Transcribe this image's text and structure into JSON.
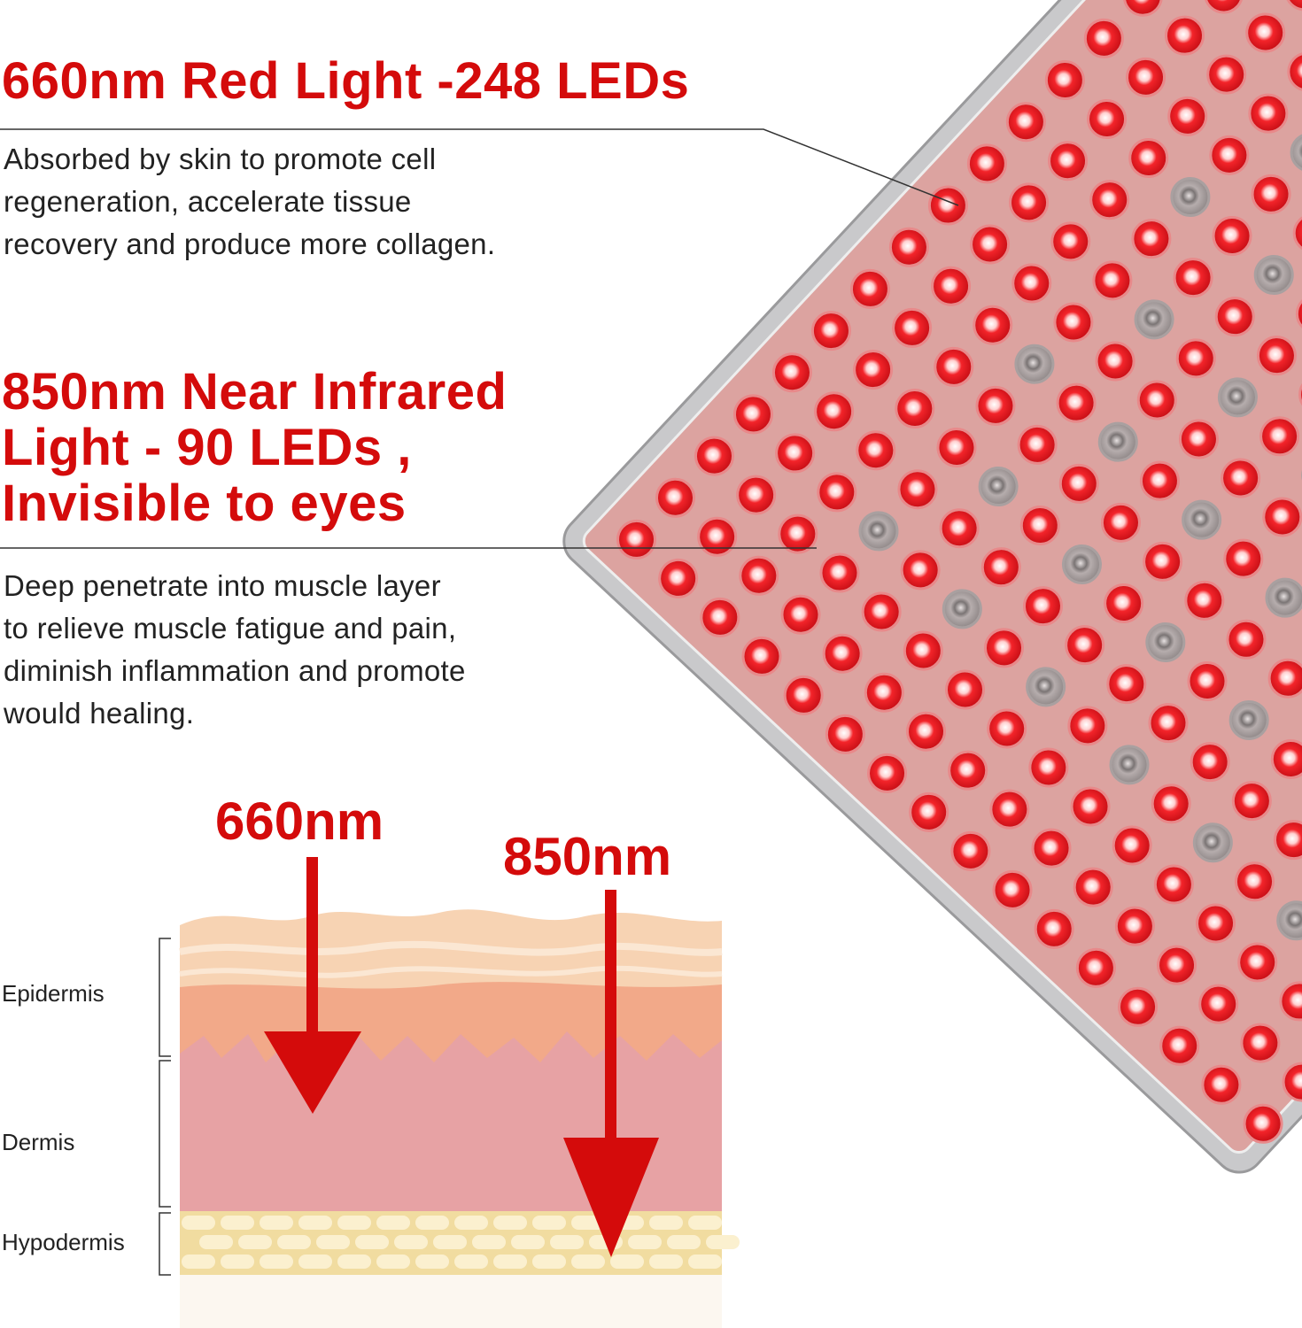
{
  "red_light": {
    "heading": "660nm Red Light -248 LEDs",
    "body": [
      "Absorbed by skin to promote cell",
      "regeneration, accelerate tissue",
      "recovery and produce more collagen."
    ]
  },
  "nir_light": {
    "heading": [
      "850nm Near Infrared",
      "Light - 90 LEDs ,",
      "Invisible to eyes"
    ],
    "body": [
      "Deep penetrate into muscle layer",
      "to relieve muscle fatigue and pain,",
      "diminish inflammation and promote",
      "would healing."
    ]
  },
  "skin_diagram": {
    "arrow_labels": [
      "660nm",
      "850nm"
    ],
    "layers": [
      "Epidermis",
      "Dermis",
      "Hypodermis"
    ]
  },
  "colors": {
    "accent_red": "#d40b0b",
    "led_red": "#f01c24",
    "led_nir": "#8e8686",
    "panel": "#dca3a0"
  }
}
